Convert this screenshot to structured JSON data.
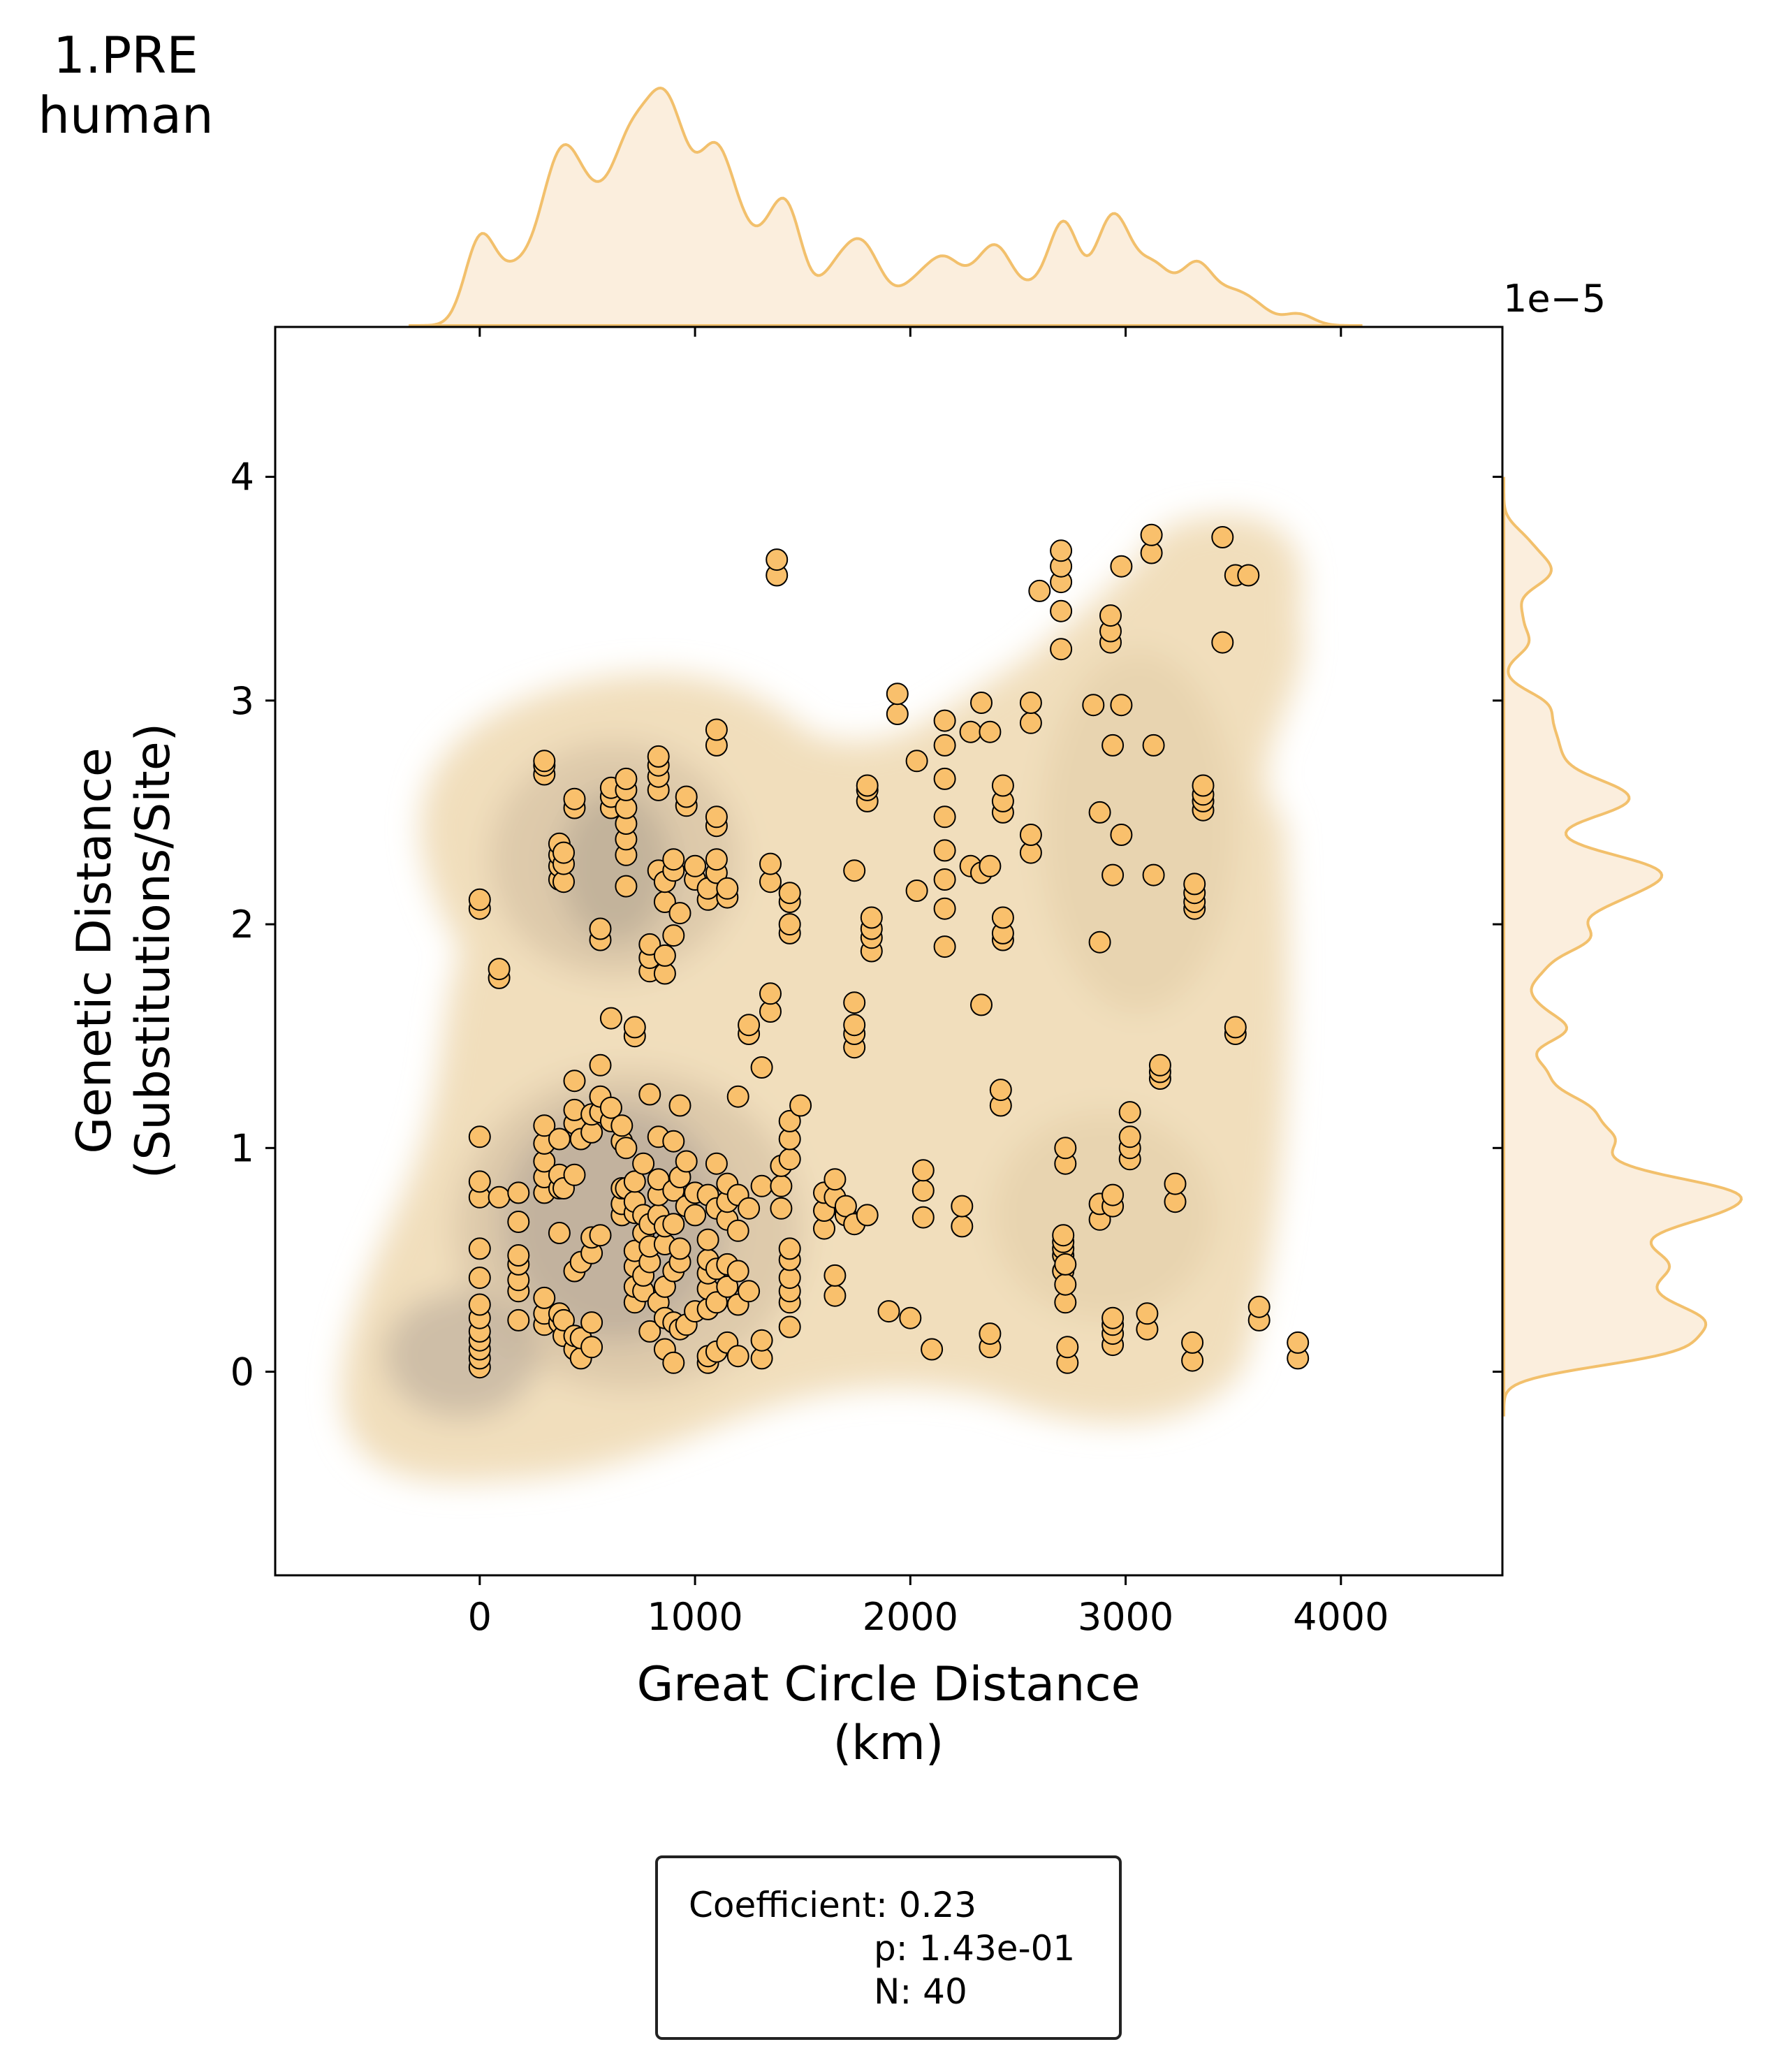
{
  "corner_title": {
    "line1": "1.PRE",
    "line2": "human"
  },
  "stats_box": {
    "coefficient": "Coefficient: 0.23",
    "p_value": "p: 1.43e-01",
    "n": "N: 40"
  },
  "colors": {
    "points": "#f9c06c",
    "point_edge": "#000000",
    "marginal_line": "#f2c06c",
    "marginal_fill": "#fbeedd",
    "kde_outer": "#f0dcb8",
    "kde_inner": "#b0a496"
  },
  "chart_data": {
    "type": "scatter",
    "xlabel": "Great Circle Distance\n(km)",
    "ylabel": "Genetic Distance\n(Substitutions/Site)",
    "x_ticks": [
      "0",
      "1000",
      "2000",
      "3000",
      "4000"
    ],
    "y_ticks": [
      "0",
      "1",
      "2",
      "3",
      "4"
    ],
    "y_offset_text": "1e−5",
    "xlim": [
      -950,
      4750
    ],
    "ylim": [
      -0.91,
      4.67
    ],
    "y_scale_factor": "1e-5",
    "grid": false,
    "overlays": [
      "kde-density-contours",
      "marginal-kde-top",
      "marginal-kde-right"
    ],
    "points": [
      [
        0,
        0.02
      ],
      [
        0,
        0.06
      ],
      [
        0,
        0.1
      ],
      [
        0,
        0.14
      ],
      [
        0,
        0.18
      ],
      [
        0,
        0.24
      ],
      [
        0,
        0.3
      ],
      [
        0,
        0.42
      ],
      [
        0,
        0.55
      ],
      [
        0,
        0.78
      ],
      [
        0,
        0.85
      ],
      [
        0,
        1.05
      ],
      [
        0,
        2.07
      ],
      [
        0,
        2.11
      ],
      [
        90,
        0.78
      ],
      [
        90,
        1.76
      ],
      [
        90,
        1.8
      ],
      [
        180,
        0.23
      ],
      [
        180,
        0.36
      ],
      [
        180,
        0.41
      ],
      [
        180,
        0.48
      ],
      [
        180,
        0.52
      ],
      [
        180,
        0.67
      ],
      [
        180,
        0.8
      ],
      [
        300,
        0.21
      ],
      [
        300,
        0.26
      ],
      [
        300,
        0.33
      ],
      [
        300,
        0.8
      ],
      [
        300,
        0.87
      ],
      [
        300,
        0.94
      ],
      [
        300,
        1.02
      ],
      [
        300,
        1.1
      ],
      [
        300,
        2.67
      ],
      [
        300,
        2.71
      ],
      [
        300,
        2.73
      ],
      [
        370,
        0.22
      ],
      [
        370,
        0.26
      ],
      [
        370,
        0.62
      ],
      [
        370,
        0.82
      ],
      [
        370,
        0.88
      ],
      [
        370,
        1.04
      ],
      [
        370,
        2.2
      ],
      [
        370,
        2.26
      ],
      [
        370,
        2.31
      ],
      [
        370,
        2.36
      ],
      [
        390,
        0.16
      ],
      [
        390,
        0.23
      ],
      [
        390,
        0.82
      ],
      [
        390,
        2.19
      ],
      [
        390,
        2.27
      ],
      [
        390,
        2.32
      ],
      [
        440,
        0.1
      ],
      [
        440,
        0.16
      ],
      [
        440,
        0.45
      ],
      [
        440,
        0.88
      ],
      [
        440,
        1.11
      ],
      [
        440,
        1.17
      ],
      [
        440,
        1.3
      ],
      [
        440,
        2.52
      ],
      [
        440,
        2.56
      ],
      [
        470,
        0.06
      ],
      [
        470,
        0.15
      ],
      [
        470,
        0.49
      ],
      [
        470,
        1.04
      ],
      [
        520,
        0.11
      ],
      [
        520,
        0.22
      ],
      [
        520,
        0.53
      ],
      [
        520,
        0.6
      ],
      [
        520,
        1.07
      ],
      [
        520,
        1.15
      ],
      [
        560,
        0.61
      ],
      [
        560,
        1.16
      ],
      [
        560,
        1.23
      ],
      [
        560,
        1.37
      ],
      [
        560,
        1.93
      ],
      [
        560,
        1.98
      ],
      [
        610,
        1.12
      ],
      [
        610,
        1.18
      ],
      [
        610,
        1.58
      ],
      [
        610,
        2.52
      ],
      [
        610,
        2.57
      ],
      [
        610,
        2.61
      ],
      [
        660,
        0.7
      ],
      [
        660,
        0.75
      ],
      [
        660,
        0.82
      ],
      [
        660,
        1.03
      ],
      [
        660,
        1.1
      ],
      [
        680,
        0.82
      ],
      [
        680,
        1.0
      ],
      [
        680,
        2.17
      ],
      [
        680,
        2.31
      ],
      [
        680,
        2.38
      ],
      [
        680,
        2.45
      ],
      [
        680,
        2.52
      ],
      [
        680,
        2.6
      ],
      [
        680,
        2.65
      ],
      [
        720,
        0.31
      ],
      [
        720,
        0.38
      ],
      [
        720,
        0.47
      ],
      [
        720,
        0.54
      ],
      [
        720,
        0.71
      ],
      [
        720,
        0.76
      ],
      [
        720,
        0.85
      ],
      [
        720,
        1.5
      ],
      [
        720,
        1.54
      ],
      [
        760,
        0.36
      ],
      [
        760,
        0.43
      ],
      [
        760,
        0.62
      ],
      [
        760,
        0.7
      ],
      [
        760,
        0.93
      ],
      [
        790,
        0.18
      ],
      [
        790,
        0.49
      ],
      [
        790,
        0.56
      ],
      [
        790,
        0.66
      ],
      [
        790,
        1.24
      ],
      [
        790,
        1.79
      ],
      [
        790,
        1.85
      ],
      [
        790,
        1.91
      ],
      [
        830,
        0.31
      ],
      [
        830,
        0.7
      ],
      [
        830,
        0.79
      ],
      [
        830,
        0.86
      ],
      [
        830,
        1.05
      ],
      [
        830,
        2.24
      ],
      [
        830,
        2.6
      ],
      [
        830,
        2.66
      ],
      [
        830,
        2.71
      ],
      [
        830,
        2.75
      ],
      [
        860,
        0.1
      ],
      [
        860,
        0.24
      ],
      [
        860,
        0.38
      ],
      [
        860,
        0.57
      ],
      [
        860,
        0.65
      ],
      [
        860,
        1.78
      ],
      [
        860,
        1.86
      ],
      [
        860,
        2.1
      ],
      [
        860,
        2.19
      ],
      [
        900,
        0.04
      ],
      [
        900,
        0.22
      ],
      [
        900,
        0.45
      ],
      [
        900,
        0.66
      ],
      [
        900,
        0.81
      ],
      [
        900,
        1.03
      ],
      [
        900,
        1.95
      ],
      [
        900,
        2.24
      ],
      [
        900,
        2.29
      ],
      [
        930,
        0.19
      ],
      [
        930,
        0.49
      ],
      [
        930,
        0.55
      ],
      [
        930,
        0.87
      ],
      [
        930,
        1.19
      ],
      [
        930,
        2.05
      ],
      [
        960,
        0.21
      ],
      [
        960,
        0.74
      ],
      [
        960,
        0.94
      ],
      [
        960,
        2.53
      ],
      [
        960,
        2.57
      ],
      [
        1000,
        0.27
      ],
      [
        1000,
        0.7
      ],
      [
        1000,
        0.8
      ],
      [
        1000,
        2.2
      ],
      [
        1000,
        2.26
      ],
      [
        1060,
        0.04
      ],
      [
        1060,
        0.07
      ],
      [
        1060,
        0.28
      ],
      [
        1060,
        0.37
      ],
      [
        1060,
        0.44
      ],
      [
        1060,
        0.5
      ],
      [
        1060,
        0.59
      ],
      [
        1060,
        0.79
      ],
      [
        1060,
        2.11
      ],
      [
        1060,
        2.16
      ],
      [
        1100,
        0.09
      ],
      [
        1100,
        0.31
      ],
      [
        1100,
        0.46
      ],
      [
        1100,
        0.73
      ],
      [
        1100,
        0.93
      ],
      [
        1100,
        2.23
      ],
      [
        1100,
        2.29
      ],
      [
        1100,
        2.44
      ],
      [
        1100,
        2.48
      ],
      [
        1100,
        2.8
      ],
      [
        1100,
        2.87
      ],
      [
        1150,
        0.13
      ],
      [
        1150,
        0.38
      ],
      [
        1150,
        0.48
      ],
      [
        1150,
        0.68
      ],
      [
        1150,
        0.76
      ],
      [
        1150,
        0.84
      ],
      [
        1150,
        2.12
      ],
      [
        1150,
        2.16
      ],
      [
        1200,
        0.07
      ],
      [
        1200,
        0.3
      ],
      [
        1200,
        0.45
      ],
      [
        1200,
        0.63
      ],
      [
        1200,
        0.79
      ],
      [
        1200,
        1.23
      ],
      [
        1250,
        0.36
      ],
      [
        1250,
        0.73
      ],
      [
        1250,
        1.51
      ],
      [
        1250,
        1.55
      ],
      [
        1310,
        0.06
      ],
      [
        1310,
        0.14
      ],
      [
        1310,
        0.83
      ],
      [
        1310,
        1.36
      ],
      [
        1350,
        1.61
      ],
      [
        1350,
        1.69
      ],
      [
        1350,
        2.19
      ],
      [
        1350,
        2.27
      ],
      [
        1380,
        3.56
      ],
      [
        1380,
        3.63
      ],
      [
        1400,
        0.73
      ],
      [
        1400,
        0.83
      ],
      [
        1400,
        0.92
      ],
      [
        1440,
        0.2
      ],
      [
        1440,
        0.31
      ],
      [
        1440,
        0.36
      ],
      [
        1440,
        0.42
      ],
      [
        1440,
        0.5
      ],
      [
        1440,
        0.55
      ],
      [
        1440,
        0.95
      ],
      [
        1440,
        1.04
      ],
      [
        1440,
        1.12
      ],
      [
        1440,
        1.96
      ],
      [
        1440,
        2.0
      ],
      [
        1440,
        2.1
      ],
      [
        1440,
        2.14
      ],
      [
        1490,
        1.19
      ],
      [
        1600,
        0.64
      ],
      [
        1600,
        0.72
      ],
      [
        1600,
        0.8
      ],
      [
        1650,
        0.34
      ],
      [
        1650,
        0.43
      ],
      [
        1650,
        0.78
      ],
      [
        1650,
        0.86
      ],
      [
        1700,
        0.7
      ],
      [
        1700,
        0.74
      ],
      [
        1740,
        0.66
      ],
      [
        1740,
        1.45
      ],
      [
        1740,
        1.51
      ],
      [
        1740,
        1.55
      ],
      [
        1740,
        1.65
      ],
      [
        1740,
        2.24
      ],
      [
        1800,
        0.7
      ],
      [
        1800,
        2.55
      ],
      [
        1800,
        2.6
      ],
      [
        1800,
        2.62
      ],
      [
        1820,
        1.88
      ],
      [
        1820,
        1.94
      ],
      [
        1820,
        1.98
      ],
      [
        1820,
        2.03
      ],
      [
        1900,
        0.27
      ],
      [
        1940,
        2.94
      ],
      [
        1940,
        3.03
      ],
      [
        2000,
        0.24
      ],
      [
        2030,
        2.15
      ],
      [
        2030,
        2.73
      ],
      [
        2060,
        0.69
      ],
      [
        2060,
        0.81
      ],
      [
        2060,
        0.9
      ],
      [
        2100,
        0.1
      ],
      [
        2160,
        1.9
      ],
      [
        2160,
        2.07
      ],
      [
        2160,
        2.2
      ],
      [
        2160,
        2.33
      ],
      [
        2160,
        2.48
      ],
      [
        2160,
        2.65
      ],
      [
        2160,
        2.8
      ],
      [
        2160,
        2.91
      ],
      [
        2240,
        0.65
      ],
      [
        2240,
        0.74
      ],
      [
        2280,
        2.26
      ],
      [
        2280,
        2.86
      ],
      [
        2330,
        1.64
      ],
      [
        2330,
        2.23
      ],
      [
        2330,
        2.99
      ],
      [
        2370,
        0.11
      ],
      [
        2370,
        0.17
      ],
      [
        2370,
        2.26
      ],
      [
        2370,
        2.86
      ],
      [
        2420,
        1.19
      ],
      [
        2420,
        1.26
      ],
      [
        2430,
        1.93
      ],
      [
        2430,
        1.96
      ],
      [
        2430,
        2.03
      ],
      [
        2430,
        2.5
      ],
      [
        2430,
        2.55
      ],
      [
        2430,
        2.62
      ],
      [
        2560,
        2.32
      ],
      [
        2560,
        2.4
      ],
      [
        2560,
        2.9
      ],
      [
        2560,
        2.99
      ],
      [
        2600,
        3.49
      ],
      [
        2700,
        3.23
      ],
      [
        2700,
        3.4
      ],
      [
        2700,
        3.53
      ],
      [
        2700,
        3.6
      ],
      [
        2700,
        3.67
      ],
      [
        2710,
        0.45
      ],
      [
        2710,
        0.52
      ],
      [
        2710,
        0.55
      ],
      [
        2710,
        0.58
      ],
      [
        2710,
        0.61
      ],
      [
        2720,
        0.31
      ],
      [
        2720,
        0.39
      ],
      [
        2720,
        0.48
      ],
      [
        2720,
        0.93
      ],
      [
        2720,
        1.0
      ],
      [
        2730,
        0.04
      ],
      [
        2730,
        0.11
      ],
      [
        2850,
        2.98
      ],
      [
        2880,
        0.68
      ],
      [
        2880,
        0.75
      ],
      [
        2880,
        1.92
      ],
      [
        2880,
        2.5
      ],
      [
        2930,
        3.26
      ],
      [
        2930,
        3.31
      ],
      [
        2930,
        3.38
      ],
      [
        2940,
        0.12
      ],
      [
        2940,
        0.17
      ],
      [
        2940,
        0.21
      ],
      [
        2940,
        0.24
      ],
      [
        2940,
        0.74
      ],
      [
        2940,
        0.79
      ],
      [
        2940,
        2.22
      ],
      [
        2940,
        2.8
      ],
      [
        2980,
        2.4
      ],
      [
        2980,
        2.98
      ],
      [
        2980,
        3.6
      ],
      [
        3020,
        0.95
      ],
      [
        3020,
        1.0
      ],
      [
        3020,
        1.05
      ],
      [
        3020,
        1.16
      ],
      [
        3100,
        0.19
      ],
      [
        3100,
        0.26
      ],
      [
        3120,
        3.66
      ],
      [
        3120,
        3.74
      ],
      [
        3130,
        2.22
      ],
      [
        3130,
        2.8
      ],
      [
        3160,
        1.31
      ],
      [
        3160,
        1.34
      ],
      [
        3160,
        1.37
      ],
      [
        3230,
        0.76
      ],
      [
        3230,
        0.84
      ],
      [
        3310,
        0.05
      ],
      [
        3310,
        0.13
      ],
      [
        3320,
        2.07
      ],
      [
        3320,
        2.1
      ],
      [
        3320,
        2.14
      ],
      [
        3320,
        2.18
      ],
      [
        3360,
        2.51
      ],
      [
        3360,
        2.55
      ],
      [
        3360,
        2.58
      ],
      [
        3360,
        2.62
      ],
      [
        3450,
        3.26
      ],
      [
        3450,
        3.73
      ],
      [
        3510,
        1.51
      ],
      [
        3510,
        1.54
      ],
      [
        3510,
        3.56
      ],
      [
        3570,
        3.56
      ],
      [
        3620,
        0.23
      ],
      [
        3620,
        0.29
      ],
      [
        3800,
        0.06
      ],
      [
        3800,
        0.13
      ]
    ]
  }
}
